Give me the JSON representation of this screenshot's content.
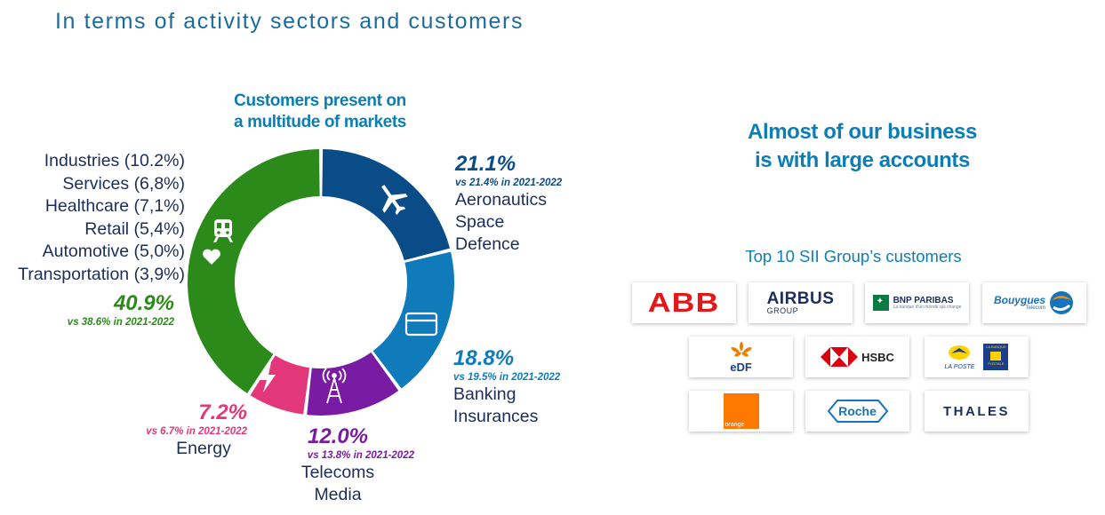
{
  "page_title": "In terms of activity sectors and customers",
  "donut_heading": [
    "Customers present on",
    "a multitude of markets"
  ],
  "right_heading": [
    "Almost of our business",
    "is with large accounts"
  ],
  "top10_title": "Top 10 SII Group’s customers",
  "colors": {
    "title": "#1b6c9e",
    "accent": "#0b7fb5",
    "aero": "#0a4c87",
    "banking": "#0f7bbb",
    "telecom": "#7a1ca3",
    "energy": "#e2387b",
    "others": "#2b8a1a",
    "text": "#1b2d5a"
  },
  "chart_data": {
    "type": "pie",
    "subtype": "donut",
    "title": "Customers present on a multitude of markets",
    "segments": [
      {
        "key": "aero",
        "value": 21.1,
        "label": "21.1%",
        "vs": "vs 21.4% in 2021-2022",
        "categories": [
          "Aeronautics",
          "Space",
          "Defence"
        ],
        "icon": "airplane-icon"
      },
      {
        "key": "banking",
        "value": 18.8,
        "label": "18.8%",
        "vs": "vs 19.5% in 2021-2022",
        "categories": [
          "Banking",
          "Insurances"
        ],
        "icon": "credit-card-icon"
      },
      {
        "key": "telecom",
        "value": 12.0,
        "label": "12.0%",
        "vs": "vs 13.8% in 2021-2022",
        "categories": [
          "Telecoms",
          "Media"
        ],
        "icon": "antenna-tower-icon"
      },
      {
        "key": "energy",
        "value": 7.2,
        "label": "7.2%",
        "vs": "vs 6.7% in 2021-2022",
        "categories": [
          "Energy"
        ],
        "icon": "lightning-icon"
      },
      {
        "key": "others",
        "value": 40.9,
        "label": "40.9%",
        "vs": "vs 38.6% in 2021-2022",
        "categories": [],
        "icons": [
          "train-icon",
          "heart-icon"
        ]
      }
    ],
    "other_sectors": [
      "Industries (10.2%)",
      "Services (6,8%)",
      "Healthcare (7,1%)",
      "Retail (5,4%)",
      "Automotive (5,0%)",
      "Transportation (3,9%)"
    ]
  },
  "customers": {
    "abb": "ABB",
    "airbus": "AIRBUS",
    "airbus_sub": "GROUP",
    "bnp": "BNP PARIBAS",
    "bnp_tagline": "La banque d'un monde qui change",
    "bouygues": "Bouygues",
    "bouygues_sub": "Telecom",
    "edf": "eDF",
    "hsbc": "HSBC",
    "laposte": "LA POSTE",
    "lbp_top": "LA BANQUE",
    "lbp_bottom": "POSTALE",
    "orange": "orange",
    "roche": "Roche",
    "thales": "THALES"
  }
}
